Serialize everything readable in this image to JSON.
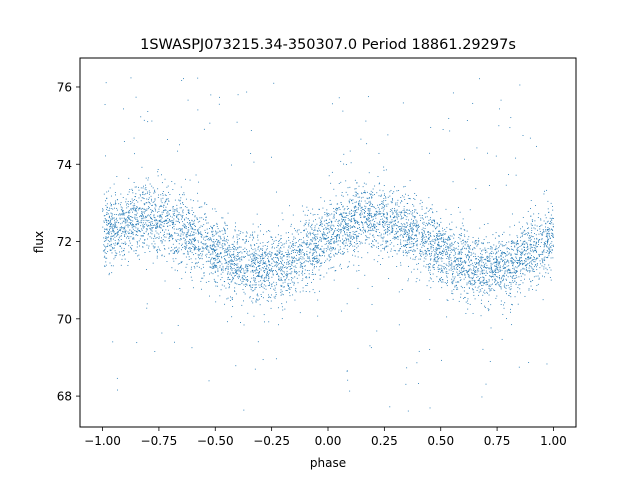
{
  "chart_data": {
    "type": "scatter",
    "title": "1SWASPJ073215.34-350307.0 Period 18861.29297s",
    "xlabel": "phase",
    "ylabel": "flux",
    "xlim": [
      -1.1,
      1.1
    ],
    "ylim": [
      67.2,
      76.75
    ],
    "x_ticks": [
      -1.0,
      -0.75,
      -0.5,
      -0.25,
      0.0,
      0.25,
      0.5,
      0.75,
      1.0
    ],
    "x_tick_labels": [
      "−1.00",
      "−0.75",
      "−0.50",
      "−0.25",
      "0.00",
      "0.25",
      "0.50",
      "0.75",
      "1.00"
    ],
    "y_ticks": [
      68,
      70,
      72,
      74,
      76
    ],
    "y_tick_labels": [
      "68",
      "70",
      "72",
      "74",
      "76"
    ],
    "grid": false,
    "point_color": "#1f77b4",
    "series": [
      {
        "x_range": [
          -1.0,
          1.0
        ],
        "mean_flux": 71.95,
        "amplitude": 0.65,
        "peak_phases": [
          -0.8,
          0.2
        ],
        "trough_phases": [
          -0.3,
          0.7
        ],
        "scatter_sigma": 0.45,
        "outlier_range": [
          67.6,
          76.4
        ],
        "n_points": 6000
      }
    ]
  }
}
